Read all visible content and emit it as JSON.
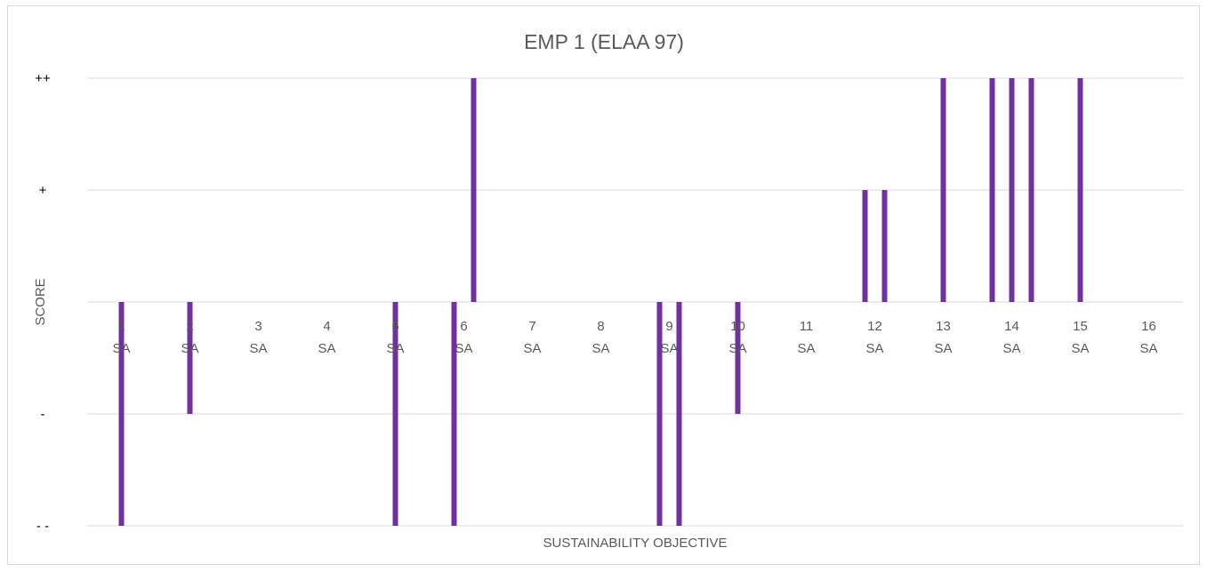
{
  "chart_data": {
    "type": "bar",
    "title": "EMP 1 (ELAA 97)",
    "xlabel": "SUSTAINABILITY OBJECTIVE",
    "ylabel": "SCORE",
    "y_ticks": [
      {
        "value": 2,
        "label": "++"
      },
      {
        "value": 1,
        "label": "+"
      },
      {
        "value": 0,
        "label": ""
      },
      {
        "value": -1,
        "label": "-"
      },
      {
        "value": -2,
        "label": "- -"
      }
    ],
    "ylim": [
      -2,
      2
    ],
    "grid": true,
    "legend": "none",
    "color": "#7030A0",
    "categories": [
      {
        "num": "1",
        "sub": "SA",
        "values": [
          -2
        ]
      },
      {
        "num": "2",
        "sub": "SA",
        "values": [
          -1
        ]
      },
      {
        "num": "3",
        "sub": "SA",
        "values": []
      },
      {
        "num": "4",
        "sub": "SA",
        "values": []
      },
      {
        "num": "5",
        "sub": "SA",
        "values": [
          -2
        ]
      },
      {
        "num": "6",
        "sub": "SA",
        "values": [
          -2,
          2
        ]
      },
      {
        "num": "7",
        "sub": "SA",
        "values": []
      },
      {
        "num": "8",
        "sub": "SA",
        "values": []
      },
      {
        "num": "9",
        "sub": "SA",
        "values": [
          -2,
          -2
        ]
      },
      {
        "num": "10",
        "sub": "SA",
        "values": [
          -1
        ]
      },
      {
        "num": "11",
        "sub": "SA",
        "values": []
      },
      {
        "num": "12",
        "sub": "SA",
        "values": [
          1,
          1
        ]
      },
      {
        "num": "13",
        "sub": "SA",
        "values": [
          2
        ]
      },
      {
        "num": "14",
        "sub": "SA",
        "values": [
          2,
          2,
          2
        ]
      },
      {
        "num": "15",
        "sub": "SA",
        "values": [
          2
        ]
      },
      {
        "num": "16",
        "sub": "SA",
        "values": []
      }
    ]
  }
}
